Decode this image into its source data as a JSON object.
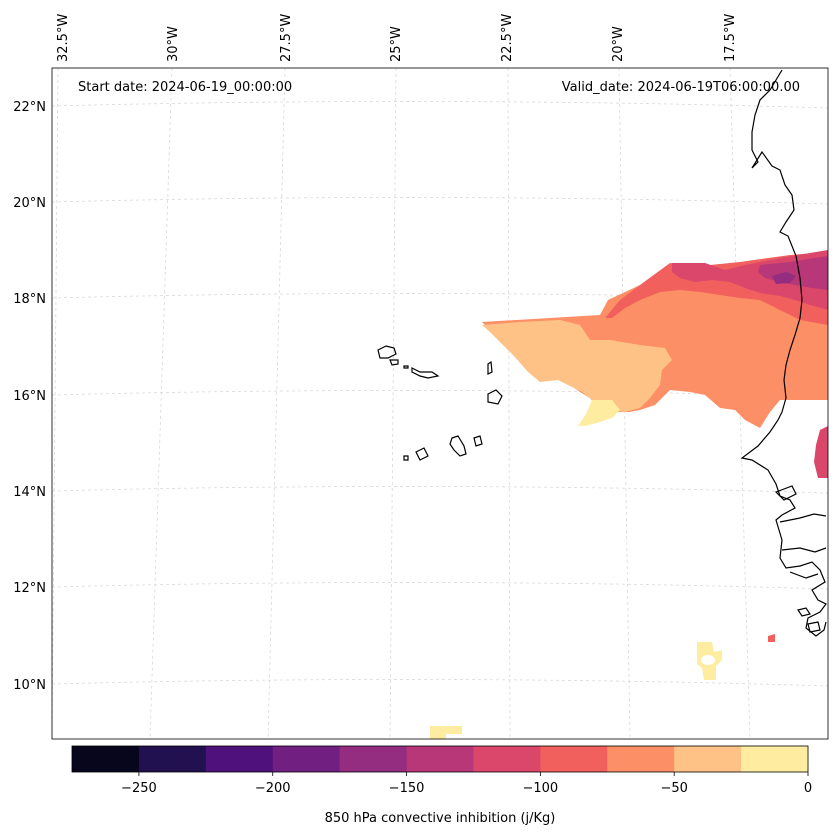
{
  "header": {
    "start_date": "Start date: 2024-06-19_00:00:00",
    "valid_date": "Valid_date: 2024-06-19T06:00:00.00"
  },
  "lon_labels": [
    "32.5°W",
    "30°W",
    "27.5°W",
    "25°W",
    "22.5°W",
    "20°W",
    "17.5°W"
  ],
  "lat_labels": [
    "22°N",
    "20°N",
    "18°N",
    "16°N",
    "14°N",
    "12°N",
    "10°N"
  ],
  "colorbar": {
    "label": "850 hPa convective inhibition (j/Kg)",
    "range": [
      -275,
      0
    ],
    "bounds": [
      -275,
      -250,
      -225,
      -200,
      -175,
      -150,
      -125,
      -100,
      -75,
      -50,
      -25,
      0
    ],
    "colors": [
      "#07061c",
      "#221150",
      "#4f117b",
      "#711f81",
      "#942c80",
      "#b73779",
      "#db476a",
      "#f1605d",
      "#fc8f65",
      "#fec287",
      "#feeca1"
    ],
    "tick_labels": [
      "−250",
      "−200",
      "−150",
      "−100",
      "−50",
      "0"
    ],
    "tick_values": [
      -250,
      -200,
      -150,
      -100,
      -50,
      0
    ]
  }
}
